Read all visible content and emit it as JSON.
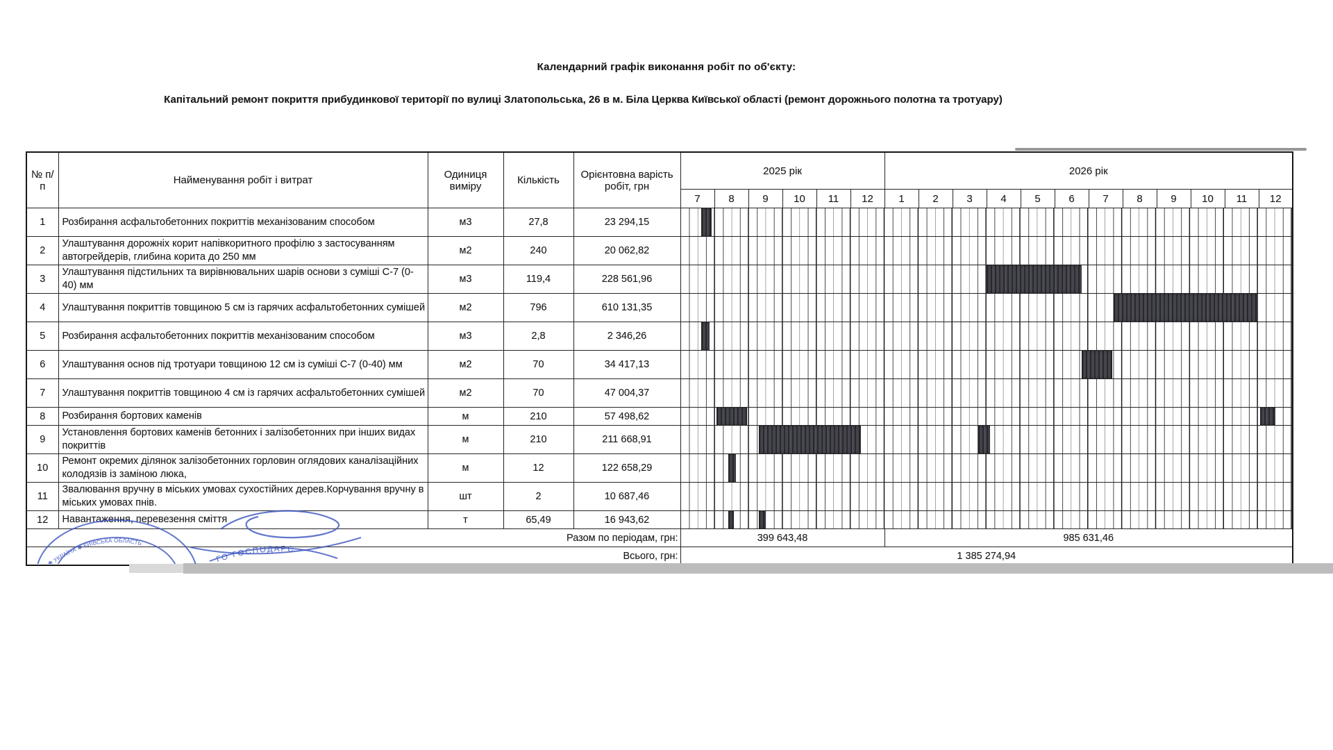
{
  "title": "Календарний графік виконання робіт по об'єкту:",
  "subtitle": "Капітальний ремонт покриття прибудинкової території по вулиці Златопольська, 26 в м. Біла Церква Київської області (ремонт дорожнього полотна та тротуару)",
  "table": {
    "headers": {
      "num": "№ п/п",
      "name": "Найменування робіт і витрат",
      "unit": "Одиниця виміру",
      "qty": "Кількість",
      "cost": "Орієнтовна варість робіт, грн",
      "year2025": "2025 рік",
      "year2026": "2026 рік"
    },
    "months2025": [
      "7",
      "8",
      "9",
      "10",
      "11",
      "12"
    ],
    "months2026": [
      "1",
      "2",
      "3",
      "4",
      "5",
      "6",
      "7",
      "8",
      "9",
      "10",
      "11",
      "12"
    ],
    "timeline": {
      "start_month": "7/2025",
      "months_total": 18,
      "weeks_per_month": 4
    },
    "rows": [
      {
        "num": "1",
        "name": "Розбирання асфальтобетонних покриттів механізованим способом",
        "unit": "м3",
        "qty": "27,8",
        "cost": "23 294,15",
        "bars": [
          [
            0.6,
            0.9
          ]
        ]
      },
      {
        "num": "2",
        "name": "Улаштування дорожніх корит напівкоритного профілю з застосуванням автогрейдерів, глибина корита до 250 мм",
        "unit": "м2",
        "qty": "240",
        "cost": "20 062,82",
        "bars": []
      },
      {
        "num": "3",
        "name": "Улаштування підстильних та вирівнювальних шарів основи з суміші С-7 (0-40) мм",
        "unit": "м3",
        "qty": "119,4",
        "cost": "228 561,96",
        "bars": [
          [
            9.0,
            11.8
          ]
        ]
      },
      {
        "num": "4",
        "name": "Улаштування покриттів товщиною 5 см із гарячих асфальтобетонних сумішей",
        "unit": "м2",
        "qty": "796",
        "cost": "610 131,35",
        "bars": [
          [
            12.75,
            17.0
          ]
        ]
      },
      {
        "num": "5",
        "name": "Розбирання асфальтобетонних покриттів механізованим способом",
        "unit": "м3",
        "qty": "2,8",
        "cost": "2 346,26",
        "bars": [
          [
            0.6,
            0.85
          ]
        ]
      },
      {
        "num": "6",
        "name": "Улаштування основ під тротуари товщиною 12 см із суміші С-7 (0-40) мм",
        "unit": "м2",
        "qty": "70",
        "cost": "34 417,13",
        "bars": [
          [
            11.8,
            12.7
          ]
        ]
      },
      {
        "num": "7",
        "name": "Улаштування покриттів товщиною 4 см із гарячих асфальтобетонних сумішей",
        "unit": "м2",
        "qty": "70",
        "cost": "47 004,37",
        "bars": []
      },
      {
        "num": "8",
        "name": "Розбирання бортових каменів",
        "unit": "м",
        "qty": "210",
        "cost": "57 498,62",
        "bars": [
          [
            1.05,
            1.95
          ],
          [
            17.05,
            17.5
          ]
        ]
      },
      {
        "num": "9",
        "name": "Установлення бортових каменів бетонних і залізобетонних при інших видах покриттів",
        "unit": "м",
        "qty": "210",
        "cost": "211 668,91",
        "bars": [
          [
            2.3,
            5.3
          ],
          [
            8.75,
            9.1
          ]
        ]
      },
      {
        "num": "10",
        "name": "Ремонт окремих ділянок залізобетонних горловин оглядових каналізаційних колодязів із заміною люка,",
        "unit": "м",
        "qty": "12",
        "cost": "122 658,29",
        "bars": [
          [
            1.4,
            1.62
          ]
        ]
      },
      {
        "num": "11",
        "name": "Звалювання вручну в міських умовах сухостійних дерев.Корчування вручну в міських умовах пнів.",
        "unit": "шт",
        "qty": "2",
        "cost": "10 687,46",
        "bars": []
      },
      {
        "num": "12",
        "name": "Навантаження, перевезення сміття",
        "unit": "т",
        "qty": "65,49",
        "cost": "16 943,62",
        "bars": [
          [
            1.4,
            1.57
          ],
          [
            2.3,
            2.5
          ]
        ]
      }
    ],
    "totals": {
      "period_label": "Разом по періодам, грн:",
      "period_2025": "399 643,48",
      "period_2026": "985 631,46",
      "total_label": "Всього, грн:",
      "total_value": "1 385 274,94"
    }
  },
  "stamp": {
    "arc_text_left": "✱ УКРАЇНА ✱ КИЇВСЬКА ОБЛАСТЬ",
    "arc_text_right": "ГО ГОСПОДАРС",
    "color": "#3c55c1"
  },
  "colors": {
    "gantt_bar": "#45454d",
    "stamp_blue": "#3c55c1",
    "scan_band": "#bcbcbc"
  }
}
